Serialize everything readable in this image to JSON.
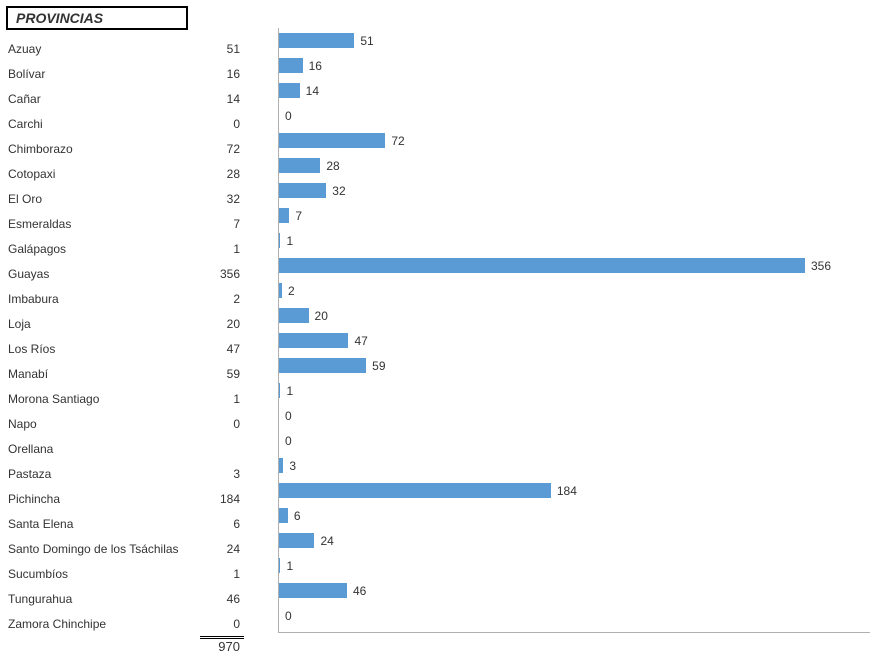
{
  "header": "PROVINCIAS",
  "bar_color": "#5b9bd5",
  "axis_color": "#b0b0b0",
  "text_color": "#333333",
  "font_size_label": 12,
  "font_size_header": 14,
  "max_value": 400,
  "total": 970,
  "rows": [
    {
      "label": "Azuay",
      "value": 51,
      "show": true
    },
    {
      "label": "Bolívar",
      "value": 16,
      "show": true
    },
    {
      "label": "Cañar",
      "value": 14,
      "show": true
    },
    {
      "label": "Carchi",
      "value": 0,
      "show": true
    },
    {
      "label": "Chimborazo",
      "value": 72,
      "show": true
    },
    {
      "label": "Cotopaxi",
      "value": 28,
      "show": true
    },
    {
      "label": "El Oro",
      "value": 32,
      "show": true
    },
    {
      "label": "Esmeraldas",
      "value": 7,
      "show": true
    },
    {
      "label": "Galápagos",
      "value": 1,
      "show": true
    },
    {
      "label": "Guayas",
      "value": 356,
      "show": true
    },
    {
      "label": "Imbabura",
      "value": 2,
      "show": true
    },
    {
      "label": "Loja",
      "value": 20,
      "show": true
    },
    {
      "label": "Los Ríos",
      "value": 47,
      "show": true
    },
    {
      "label": "Manabí",
      "value": 59,
      "show": true
    },
    {
      "label": "Morona Santiago",
      "value": 1,
      "show": true
    },
    {
      "label": "Napo",
      "value": 0,
      "show": true
    },
    {
      "label": "Orellana",
      "value": 0,
      "show": false
    },
    {
      "label": "Pastaza",
      "value": 3,
      "show": true
    },
    {
      "label": "Pichincha",
      "value": 184,
      "show": true
    },
    {
      "label": "Santa Elena",
      "value": 6,
      "show": true
    },
    {
      "label": "Santo Domingo de los Tsáchilas",
      "value": 24,
      "show": true
    },
    {
      "label": "Sucumbíos",
      "value": 1,
      "show": true
    },
    {
      "label": "Tungurahua",
      "value": 46,
      "show": true
    },
    {
      "label": "Zamora Chinchipe",
      "value": 0,
      "show": true
    }
  ]
}
